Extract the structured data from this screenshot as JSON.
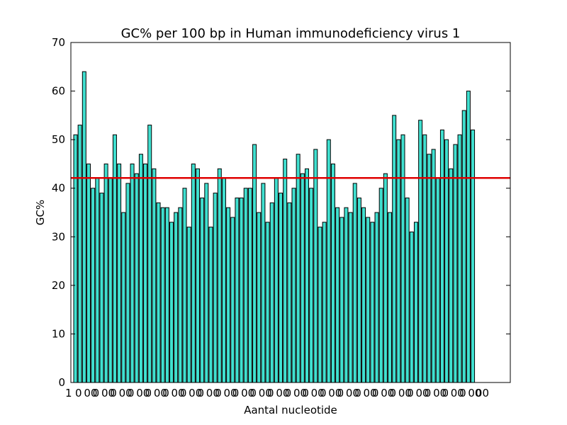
{
  "chart_data": {
    "type": "bar",
    "title": "GC% per 100 bp in Human immunodeficiency virus 1",
    "xlabel": "Aantal nucleotide",
    "ylabel": "GC%",
    "ylim": [
      0,
      70
    ],
    "yticks": [
      0,
      10,
      20,
      30,
      40,
      50,
      60,
      70
    ],
    "grid": false,
    "bar_color": "#40e0d0",
    "mean_line_color": "#e00000",
    "mean_gc": 42.1,
    "series": [
      {
        "values": [
          51,
          53,
          64,
          45,
          40,
          42,
          39,
          45,
          42,
          51,
          45,
          35,
          41,
          45,
          43,
          47,
          45,
          53,
          44,
          37,
          36,
          36,
          33,
          35,
          36,
          40,
          32,
          45,
          44,
          38,
          41,
          32,
          39,
          44,
          42,
          36,
          34,
          38,
          38,
          40,
          40,
          49,
          35,
          41,
          33,
          37,
          42,
          39,
          46,
          37,
          40,
          47,
          43,
          44,
          40,
          48,
          32,
          33,
          50,
          45,
          36,
          34,
          36,
          35,
          41,
          38,
          36,
          34,
          33,
          35,
          40,
          43,
          35,
          55,
          50,
          51,
          38,
          31,
          33,
          54,
          51,
          47,
          48,
          42,
          52,
          50,
          44,
          49,
          51,
          56,
          60,
          52
        ]
      }
    ],
    "x_tick_labels_legible": [
      "1",
      "00"
    ]
  }
}
